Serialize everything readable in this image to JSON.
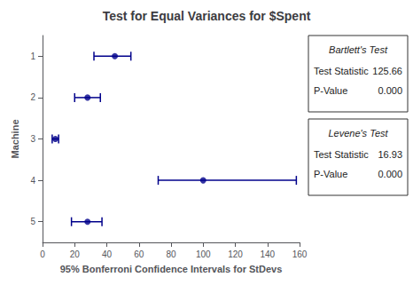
{
  "chart_data": {
    "type": "scatter",
    "orientation": "horizontal",
    "title": "Test for Equal Variances for $Spent",
    "xlabel": "95% Bonferroni Confidence Intervals for StDevs",
    "ylabel": "Machine",
    "y": [
      1,
      2,
      3,
      4,
      5
    ],
    "values": [
      45,
      28,
      8,
      100,
      28
    ],
    "ci_low": [
      32,
      20,
      6,
      72,
      18
    ],
    "ci_high": [
      55,
      36,
      10,
      158,
      37
    ],
    "color": "#00008B",
    "xlim": [
      0,
      160
    ],
    "xticks": [
      0,
      20,
      40,
      60,
      80,
      100,
      120,
      140,
      160
    ],
    "ylim": [
      0.5,
      5.5
    ],
    "yticks": [
      1,
      2,
      3,
      4,
      5
    ],
    "grid": false,
    "annotations": [
      {
        "title": "Bartlett's Test",
        "rows": [
          [
            "Test Statistic",
            "125.66"
          ],
          [
            "P-Value",
            "0.000"
          ]
        ]
      },
      {
        "title": "Levene's Test",
        "rows": [
          [
            "Test Statistic",
            "16.93"
          ],
          [
            "P-Value",
            "0.000"
          ]
        ]
      }
    ]
  }
}
